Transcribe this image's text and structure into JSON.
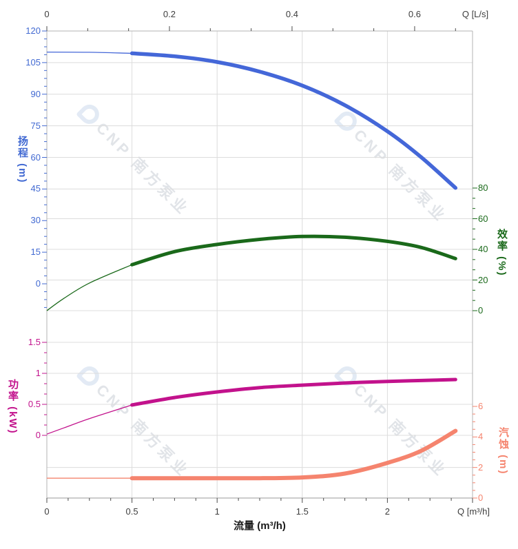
{
  "page": {
    "background": "#ffffff"
  },
  "watermark": {
    "text": "CNP 南方泵业",
    "logo_icon": "cnp-logo",
    "color": "#c9ced6"
  },
  "axes": {
    "flow_top": {
      "unit_label": "Q [L/s]",
      "tick_labels": [
        "0",
        "0.2",
        "0.4",
        "0.6"
      ],
      "tick_values_ls": [
        0,
        0.2,
        0.4,
        0.6
      ],
      "color": "#3d3d3d"
    },
    "flow_bottom": {
      "unit_label": "Q [m³/h]",
      "axis_title": "流量 (m³/h)",
      "tick_labels": [
        "0",
        "0.5",
        "1",
        "1.5",
        "2"
      ],
      "tick_values": [
        0,
        0.5,
        1,
        1.5,
        2
      ],
      "color": "#3d3d3d"
    },
    "head": {
      "axis_title": "扬程 (m)",
      "tick_labels": [
        "0",
        "15",
        "30",
        "45",
        "60",
        "75",
        "90",
        "105",
        "120"
      ],
      "tick_values": [
        0,
        15,
        30,
        45,
        60,
        75,
        90,
        105,
        120
      ],
      "color": "#4169d2"
    },
    "efficiency": {
      "axis_title": "效率 (%)",
      "tick_labels": [
        "0",
        "20",
        "40",
        "60",
        "80"
      ],
      "tick_values": [
        0,
        20,
        40,
        60,
        80
      ],
      "color": "#1a691a"
    },
    "power": {
      "axis_title": "功率 (kW)",
      "tick_labels": [
        "0",
        "0.5",
        "1",
        "1.5"
      ],
      "tick_values": [
        0,
        0.5,
        1,
        1.5
      ],
      "color": "#c2128c"
    },
    "npsh": {
      "axis_title": "汽蚀 (m)",
      "tick_labels": [
        "0",
        "2",
        "4",
        "6"
      ],
      "tick_values": [
        0,
        2,
        4,
        6
      ],
      "color": "#f5846e"
    }
  },
  "chart_data": {
    "type": "line",
    "x_unit": "m³/h",
    "x_range": [
      0,
      2.5
    ],
    "rated_flow_range": [
      0.5,
      2.4
    ],
    "grid": "on",
    "series": [
      {
        "name": "head",
        "y_axis": "head",
        "y_unit": "m",
        "y_range": [
          0,
          120
        ],
        "color": "#4467d8",
        "x": [
          0,
          0.25,
          0.5,
          0.75,
          1,
          1.25,
          1.5,
          1.75,
          2,
          2.2,
          2.4
        ],
        "y": [
          110,
          109.9,
          109.4,
          108,
          105.3,
          100.7,
          94.1,
          84.8,
          72.4,
          60.0,
          45.5
        ]
      },
      {
        "name": "efficiency",
        "y_axis": "efficiency",
        "y_unit": "%",
        "y_range": [
          0,
          80
        ],
        "color": "#1a691a",
        "x": [
          0,
          0.1,
          0.25,
          0.5,
          0.75,
          1,
          1.25,
          1.5,
          1.75,
          2,
          2.2,
          2.4
        ],
        "y": [
          0,
          8,
          18,
          30,
          38.5,
          43.2,
          46.5,
          48.4,
          47.9,
          45.2,
          41.2,
          34
        ]
      },
      {
        "name": "power",
        "y_axis": "power",
        "y_unit": "kW",
        "y_range": [
          0,
          1.5
        ],
        "color": "#c2128c",
        "x": [
          0,
          0.1,
          0.25,
          0.5,
          0.75,
          1,
          1.25,
          1.5,
          1.75,
          2,
          2.2,
          2.4
        ],
        "y": [
          0.02,
          0.12,
          0.27,
          0.49,
          0.61,
          0.7,
          0.77,
          0.81,
          0.845,
          0.87,
          0.885,
          0.9
        ]
      },
      {
        "name": "npsh",
        "y_axis": "npsh",
        "y_unit": "m",
        "y_range": [
          0,
          6
        ],
        "color": "#f5846e",
        "x": [
          0,
          0.5,
          1,
          1.25,
          1.5,
          1.75,
          2,
          2.2,
          2.4
        ],
        "y": [
          1.3,
          1.3,
          1.3,
          1.3,
          1.35,
          1.6,
          2.3,
          3.1,
          4.4
        ]
      }
    ]
  }
}
